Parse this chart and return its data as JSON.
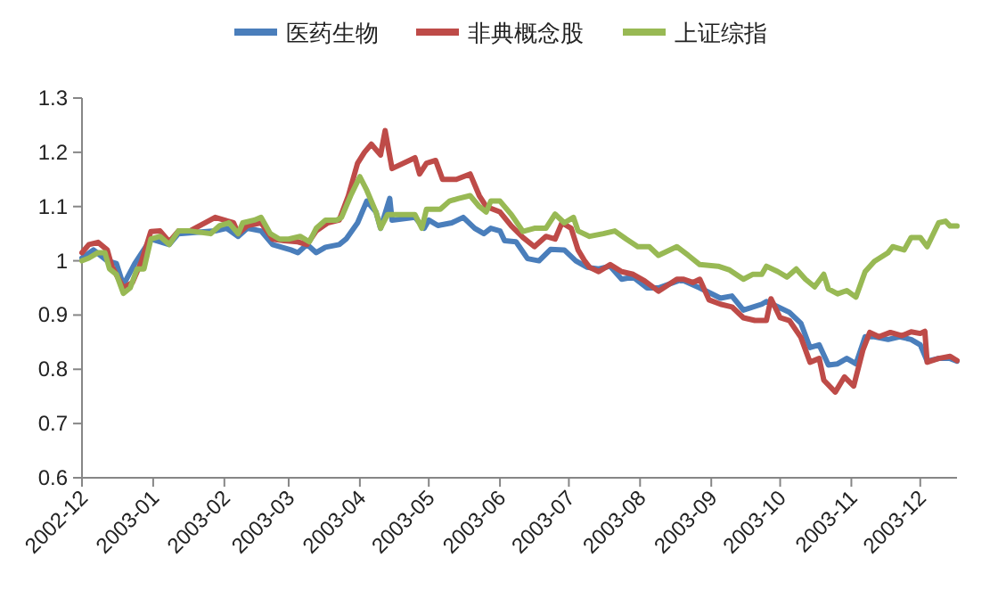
{
  "chart_data": {
    "type": "line",
    "legend": "top",
    "line_style": "solid",
    "xlim": [
      "2002-12-01",
      "2003-12-17"
    ],
    "ylim": [
      0.6,
      1.3
    ],
    "xticks": [
      "2002-12",
      "2003-01",
      "2003-02",
      "2003-03",
      "2003-04",
      "2003-05",
      "2003-06",
      "2003-07",
      "2003-08",
      "2003-09",
      "2003-10",
      "2003-11",
      "2003-12"
    ],
    "yticks": [
      0.6,
      0.7,
      0.8,
      0.9,
      1,
      1.1,
      1.2,
      1.3
    ],
    "series": [
      {
        "name": "医药生物",
        "color": "#4a7ebb",
        "x": [
          "2002-12-01",
          "2002-12-06",
          "2002-12-12",
          "2002-12-16",
          "2002-12-19",
          "2002-12-24",
          "2002-12-31",
          "2003-01-08",
          "2003-01-12",
          "2003-01-28",
          "2003-02-02",
          "2003-02-07",
          "2003-02-11",
          "2003-02-17",
          "2003-02-22",
          "2003-03-02",
          "2003-03-05",
          "2003-03-09",
          "2003-03-13",
          "2003-03-17",
          "2003-03-23",
          "2003-03-26",
          "2003-03-31",
          "2003-04-04",
          "2003-04-08",
          "2003-04-10",
          "2003-04-14",
          "2003-04-15",
          "2003-04-25",
          "2003-04-29",
          "2003-05-01",
          "2003-05-05",
          "2003-05-11",
          "2003-05-16",
          "2003-05-21",
          "2003-05-25",
          "2003-05-28",
          "2003-06-01",
          "2003-06-03",
          "2003-06-08",
          "2003-06-13",
          "2003-06-18",
          "2003-06-23",
          "2003-06-29",
          "2003-07-04",
          "2003-07-09",
          "2003-07-14",
          "2003-07-19",
          "2003-07-24",
          "2003-07-29",
          "2003-08-04",
          "2003-08-09",
          "2003-08-19",
          "2003-08-27",
          "2003-09-05",
          "2003-09-10",
          "2003-09-15",
          "2003-09-23",
          "2003-09-25",
          "2003-09-30",
          "2003-10-05",
          "2003-10-10",
          "2003-10-14",
          "2003-10-18",
          "2003-10-22",
          "2003-10-26",
          "2003-10-30",
          "2003-11-03",
          "2003-11-07",
          "2003-11-11",
          "2003-11-17",
          "2003-11-22",
          "2003-11-27",
          "2003-12-01",
          "2003-12-04",
          "2003-12-09",
          "2003-12-14",
          "2003-12-17"
        ],
        "values": [
          1.005,
          1.02,
          1.0,
          0.995,
          0.955,
          0.995,
          1.04,
          1.03,
          1.05,
          1.055,
          1.06,
          1.045,
          1.06,
          1.055,
          1.03,
          1.02,
          1.015,
          1.03,
          1.015,
          1.025,
          1.03,
          1.04,
          1.07,
          1.11,
          1.09,
          1.06,
          1.115,
          1.075,
          1.08,
          1.06,
          1.075,
          1.065,
          1.07,
          1.08,
          1.06,
          1.05,
          1.06,
          1.055,
          1.037,
          1.035,
          1.004,
          1.0,
          1.021,
          1.02,
          1.0,
          0.988,
          0.985,
          0.99,
          0.966,
          0.97,
          0.95,
          0.95,
          0.965,
          0.95,
          0.931,
          0.935,
          0.909,
          0.92,
          0.925,
          0.915,
          0.905,
          0.885,
          0.84,
          0.845,
          0.808,
          0.81,
          0.82,
          0.81,
          0.86,
          0.86,
          0.855,
          0.86,
          0.855,
          0.845,
          0.815,
          0.82,
          0.82,
          0.815
        ]
      },
      {
        "name": "非典概念股",
        "color": "#be4b48",
        "x": [
          "2002-12-01",
          "2002-12-04",
          "2002-12-08",
          "2002-12-12",
          "2002-12-14",
          "2002-12-19",
          "2002-12-23",
          "2002-12-27",
          "2002-12-31",
          "2003-01-04",
          "2003-01-08",
          "2003-01-12",
          "2003-01-17",
          "2003-01-28",
          "2003-02-05",
          "2003-02-07",
          "2003-02-11",
          "2003-02-17",
          "2003-02-22",
          "2003-02-27",
          "2003-03-05",
          "2003-03-09",
          "2003-03-13",
          "2003-03-18",
          "2003-03-23",
          "2003-03-27",
          "2003-03-31",
          "2003-04-03",
          "2003-04-06",
          "2003-04-10",
          "2003-04-12",
          "2003-04-15",
          "2003-04-25",
          "2003-04-27",
          "2003-04-30",
          "2003-05-04",
          "2003-05-07",
          "2003-05-13",
          "2003-05-19",
          "2003-05-23",
          "2003-05-26",
          "2003-06-01",
          "2003-06-06",
          "2003-06-11",
          "2003-06-16",
          "2003-06-21",
          "2003-06-25",
          "2003-06-28",
          "2003-07-02",
          "2003-07-05",
          "2003-07-08",
          "2003-07-10",
          "2003-07-14",
          "2003-07-19",
          "2003-07-24",
          "2003-07-29",
          "2003-08-03",
          "2003-08-09",
          "2003-08-17",
          "2003-08-20",
          "2003-08-24",
          "2003-08-27",
          "2003-08-31",
          "2003-09-05",
          "2003-09-10",
          "2003-09-15",
          "2003-09-20",
          "2003-09-25",
          "2003-09-27",
          "2003-10-01",
          "2003-10-05",
          "2003-10-10",
          "2003-10-14",
          "2003-10-18",
          "2003-10-20",
          "2003-10-25",
          "2003-10-29",
          "2003-11-02",
          "2003-11-06",
          "2003-11-09",
          "2003-11-13",
          "2003-11-18",
          "2003-11-23",
          "2003-11-27",
          "2003-12-01",
          "2003-12-03",
          "2003-12-04",
          "2003-12-09",
          "2003-12-14",
          "2003-12-17"
        ],
        "values": [
          1.015,
          1.03,
          1.034,
          1.02,
          0.99,
          0.95,
          0.96,
          1.0,
          1.054,
          1.055,
          1.035,
          1.055,
          1.055,
          1.08,
          1.07,
          1.05,
          1.065,
          1.07,
          1.04,
          1.037,
          1.035,
          1.03,
          1.055,
          1.07,
          1.075,
          1.12,
          1.18,
          1.2,
          1.215,
          1.195,
          1.24,
          1.17,
          1.19,
          1.16,
          1.18,
          1.185,
          1.15,
          1.15,
          1.16,
          1.12,
          1.1,
          1.09,
          1.064,
          1.043,
          1.026,
          1.045,
          1.04,
          1.07,
          1.06,
          1.02,
          0.999,
          0.988,
          0.98,
          0.993,
          0.98,
          0.975,
          0.963,
          0.944,
          0.966,
          0.966,
          0.96,
          0.966,
          0.928,
          0.92,
          0.915,
          0.895,
          0.89,
          0.89,
          0.93,
          0.895,
          0.89,
          0.859,
          0.813,
          0.82,
          0.78,
          0.758,
          0.786,
          0.769,
          0.835,
          0.868,
          0.86,
          0.868,
          0.862,
          0.869,
          0.866,
          0.87,
          0.813,
          0.82,
          0.824,
          0.816
        ]
      },
      {
        "name": "上证综指",
        "color": "#98b954",
        "x": [
          "2002-12-01",
          "2002-12-04",
          "2002-12-08",
          "2002-12-11",
          "2002-12-13",
          "2002-12-16",
          "2002-12-19",
          "2002-12-22",
          "2002-12-25",
          "2002-12-28",
          "2002-12-31",
          "2003-01-04",
          "2003-01-08",
          "2003-01-12",
          "2003-01-17",
          "2003-01-26",
          "2003-01-30",
          "2003-02-03",
          "2003-02-07",
          "2003-02-09",
          "2003-02-14",
          "2003-02-17",
          "2003-02-21",
          "2003-02-25",
          "2003-03-01",
          "2003-03-06",
          "2003-03-10",
          "2003-03-13",
          "2003-03-17",
          "2003-03-22",
          "2003-03-24",
          "2003-03-28",
          "2003-04-01",
          "2003-04-04",
          "2003-04-08",
          "2003-04-10",
          "2003-04-13",
          "2003-04-25",
          "2003-04-28",
          "2003-04-30",
          "2003-05-06",
          "2003-05-10",
          "2003-05-14",
          "2003-05-19",
          "2003-05-23",
          "2003-05-26",
          "2003-05-28",
          "2003-06-01",
          "2003-06-06",
          "2003-06-11",
          "2003-06-16",
          "2003-06-21",
          "2003-06-25",
          "2003-06-29",
          "2003-07-03",
          "2003-07-05",
          "2003-07-10",
          "2003-07-16",
          "2003-07-21",
          "2003-07-26",
          "2003-07-31",
          "2003-08-05",
          "2003-08-09",
          "2003-08-17",
          "2003-08-22",
          "2003-08-27",
          "2003-09-04",
          "2003-09-09",
          "2003-09-15",
          "2003-09-19",
          "2003-09-23",
          "2003-09-25",
          "2003-09-30",
          "2003-10-04",
          "2003-10-08",
          "2003-10-12",
          "2003-10-16",
          "2003-10-20",
          "2003-10-22",
          "2003-10-26",
          "2003-10-30",
          "2003-11-03",
          "2003-11-07",
          "2003-11-11",
          "2003-11-17",
          "2003-11-19",
          "2003-11-24",
          "2003-11-27",
          "2003-12-01",
          "2003-12-04",
          "2003-12-09",
          "2003-12-12",
          "2003-12-14",
          "2003-12-17"
        ],
        "values": [
          1.0,
          1.005,
          1.015,
          1.015,
          0.985,
          0.975,
          0.94,
          0.95,
          0.985,
          0.985,
          1.04,
          1.045,
          1.03,
          1.055,
          1.055,
          1.05,
          1.065,
          1.07,
          1.05,
          1.07,
          1.075,
          1.08,
          1.05,
          1.04,
          1.04,
          1.045,
          1.035,
          1.06,
          1.075,
          1.075,
          1.08,
          1.12,
          1.155,
          1.13,
          1.09,
          1.06,
          1.085,
          1.085,
          1.06,
          1.095,
          1.095,
          1.11,
          1.115,
          1.12,
          1.1,
          1.09,
          1.11,
          1.11,
          1.085,
          1.054,
          1.06,
          1.06,
          1.086,
          1.07,
          1.08,
          1.055,
          1.045,
          1.05,
          1.055,
          1.04,
          1.026,
          1.026,
          1.01,
          1.026,
          1.01,
          0.993,
          0.99,
          0.983,
          0.966,
          0.975,
          0.975,
          0.99,
          0.98,
          0.97,
          0.985,
          0.966,
          0.952,
          0.975,
          0.948,
          0.939,
          0.945,
          0.933,
          0.98,
          0.999,
          1.015,
          1.026,
          1.02,
          1.043,
          1.043,
          1.026,
          1.07,
          1.073,
          1.064,
          1.064
        ]
      }
    ]
  }
}
